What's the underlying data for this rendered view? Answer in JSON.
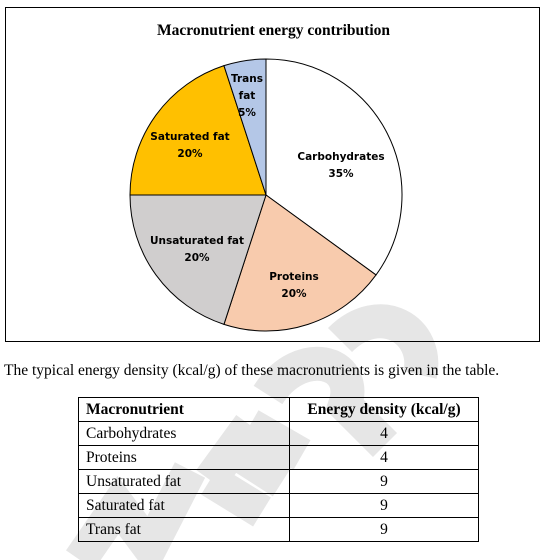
{
  "chart_data": {
    "type": "pie",
    "title": "Macronutrient energy contribution",
    "slices": [
      {
        "label": "Carbohydrates",
        "value": 35,
        "value_label": "35%",
        "color": "#ffffff"
      },
      {
        "label": "Proteins",
        "value": 20,
        "value_label": "20%",
        "color": "#f8cbad"
      },
      {
        "label": "Unsaturated fat",
        "value": 20,
        "value_label": "20%",
        "color": "#d0cece"
      },
      {
        "label": "Saturated fat",
        "value": 20,
        "value_label": "20%",
        "color": "#ffc000"
      },
      {
        "label": "Trans fat",
        "value": 5,
        "value_label": "5%",
        "color": "#b4c7e7"
      }
    ],
    "legend": "none"
  },
  "intro_text": "The typical energy density (kcal/g) of these macronutrients is given in the table.",
  "table": {
    "headers": [
      "Macronutrient",
      "Energy density (kcal/g)"
    ],
    "rows": [
      [
        "Carbohydrates",
        "4"
      ],
      [
        "Proteins",
        "4"
      ],
      [
        "Unsaturated fat",
        "9"
      ],
      [
        "Saturated fat",
        "9"
      ],
      [
        "Trans fat",
        "9"
      ]
    ]
  }
}
